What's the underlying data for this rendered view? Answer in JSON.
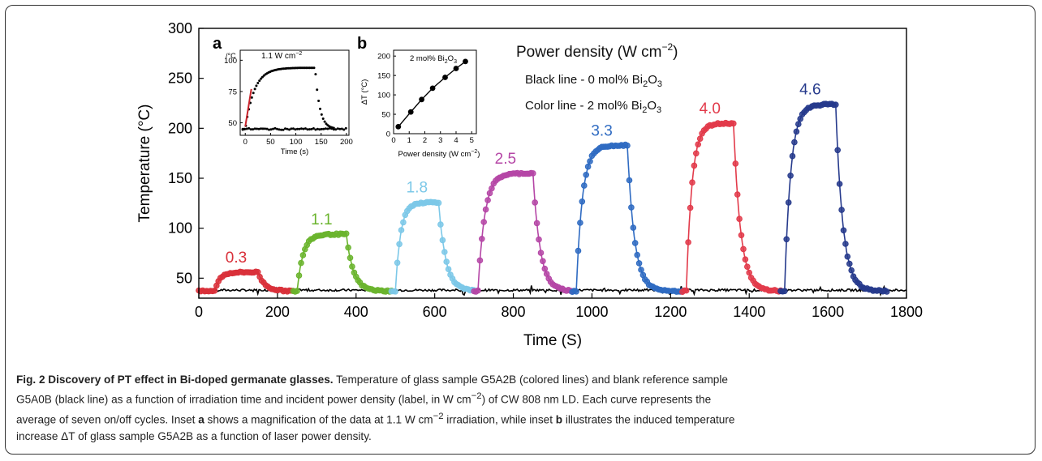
{
  "chart_data": [
    {
      "id": "main",
      "type": "line",
      "xlabel": "Time (S)",
      "ylabel": "Temperature (°C)",
      "xlim": [
        0,
        1800
      ],
      "ylim": [
        30,
        300
      ],
      "xticks": [
        0,
        200,
        400,
        600,
        800,
        1000,
        1200,
        1400,
        1600,
        1800
      ],
      "yticks": [
        50,
        100,
        150,
        200,
        250,
        300
      ],
      "legend": {
        "title": "Power density (W cm",
        "title_sup": "−2",
        "title_end": ")",
        "black_prefix": "Black line - 0 mol% Bi",
        "black_sub": "2",
        "black_suffix": "O",
        "black_sub2": "3",
        "color_prefix": "Color line - 2 mol% Bi",
        "color_sub": "2",
        "color_suffix": "O",
        "color_sub2": "3"
      },
      "baseline": {
        "name": "0 mol% Bi2O3",
        "color": "#000000",
        "value": 38
      },
      "series": [
        {
          "label": "0.3",
          "color": "#d9303a",
          "start": 0,
          "on": 40,
          "off": 150,
          "end": 240,
          "peak": 56
        },
        {
          "label": "1.1",
          "color": "#6ab42d",
          "start": 240,
          "on": 250,
          "off": 375,
          "end": 490,
          "peak": 94
        },
        {
          "label": "1.8",
          "color": "#7cc8e8",
          "start": 490,
          "on": 500,
          "off": 610,
          "end": 700,
          "peak": 126
        },
        {
          "label": "2.5",
          "color": "#b546a6",
          "start": 700,
          "on": 710,
          "off": 850,
          "end": 950,
          "peak": 155
        },
        {
          "label": "3.3",
          "color": "#2f6bc2",
          "start": 950,
          "on": 960,
          "off": 1090,
          "end": 1230,
          "peak": 183
        },
        {
          "label": "4.0",
          "color": "#e23a4a",
          "start": 1230,
          "on": 1240,
          "off": 1360,
          "end": 1480,
          "peak": 205
        },
        {
          "label": "4.6",
          "color": "#263a8c",
          "start": 1480,
          "on": 1490,
          "off": 1620,
          "end": 1750,
          "peak": 224
        }
      ]
    },
    {
      "id": "inset_a",
      "type": "scatter",
      "panel_label": "a",
      "title_prefix": "1.1 W cm",
      "title_sup": "−2",
      "ylabel": "/°C",
      "xlabel": "Time (s)",
      "xlim": [
        -10,
        205
      ],
      "ylim": [
        40,
        108
      ],
      "xticks": [
        0,
        50,
        100,
        150,
        200
      ],
      "yticks": [
        50,
        75,
        100
      ],
      "on": 0,
      "off": 138,
      "peak": 94,
      "base": 45
    },
    {
      "id": "inset_b",
      "type": "line",
      "panel_label": "b",
      "title_prefix": "2 mol% Bi",
      "title_sub": "2",
      "title_mid": "O",
      "title_sub2": "3",
      "ylabel": "ΔT (°C)",
      "xlabel_prefix": "Power density (W cm",
      "xlabel_sup": "−2",
      "xlabel_end": ")",
      "xlim": [
        0,
        5.3
      ],
      "ylim": [
        0,
        215
      ],
      "xticks": [
        0,
        1,
        2,
        3,
        4,
        5
      ],
      "yticks": [
        0,
        50,
        100,
        150,
        200
      ],
      "x": [
        0.3,
        1.1,
        1.8,
        2.5,
        3.3,
        4.0,
        4.6
      ],
      "y": [
        18,
        56,
        88,
        117,
        145,
        168,
        186
      ]
    }
  ],
  "caption": {
    "title": "Fig. 2 Discovery of PT effect in Bi-doped germanate glasses.",
    "line1": " Temperature of glass sample G5A2B (colored lines) and blank reference sample",
    "line2a": "G5A0B (black line) as a function of irradiation time and incident power density (label, in W cm",
    "line2sup": "−2",
    "line2b": ") of CW 808 nm LD. Each curve represents the",
    "line3": "average of seven on/off cycles. Inset ",
    "line3a": "a",
    "line3b": " shows a magnification of the data at 1.1 W cm",
    "line3sup": "−2",
    "line3c": " irradiation, while inset ",
    "line3d": "b",
    "line3e": " illustrates the induced temperature",
    "line4": "increase ΔT of glass sample G5A2B as a function of laser power density."
  }
}
